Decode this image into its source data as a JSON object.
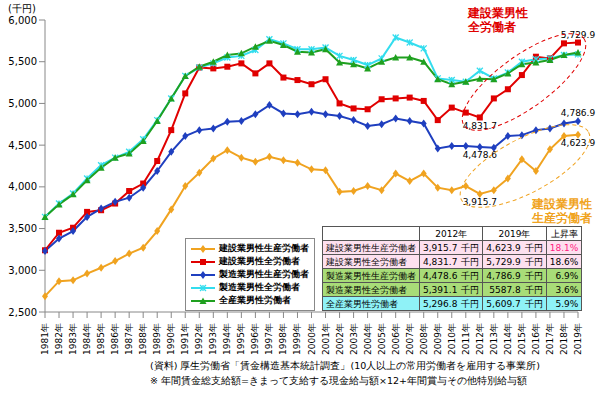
{
  "chart_data": {
    "type": "line",
    "unit_label": "(千円)",
    "categories": [
      "1981年",
      "1982年",
      "1983年",
      "1984年",
      "1985年",
      "1986年",
      "1987年",
      "1988年",
      "1989年",
      "1990年",
      "1991年",
      "1992年",
      "1993年",
      "1994年",
      "1995年",
      "1996年",
      "1997年",
      "1998年",
      "1999年",
      "2000年",
      "2001年",
      "2002年",
      "2003年",
      "2004年",
      "2005年",
      "2006年",
      "2007年",
      "2008年",
      "2009年",
      "2010年",
      "2011年",
      "2012年",
      "2013年",
      "2014年",
      "2015年",
      "2016年",
      "2017年",
      "2018年",
      "2019年"
    ],
    "series": [
      {
        "name": "建設業男性生産労働者",
        "color": "#f0a320",
        "marker": "diamond",
        "values": [
          2690,
          2870,
          2880,
          2960,
          3030,
          3110,
          3200,
          3270,
          3470,
          3730,
          4010,
          4170,
          4340,
          4440,
          4350,
          4300,
          4360,
          4320,
          4290,
          4210,
          4200,
          3940,
          3950,
          4010,
          3960,
          4160,
          4070,
          4160,
          3990,
          3960,
          4010,
          3915.7,
          3960,
          4100,
          4330,
          4190,
          4450,
          4610,
          4623.9
        ]
      },
      {
        "name": "建設業男性全労働者",
        "color": "#e00000",
        "marker": "square",
        "values": [
          3240,
          3450,
          3510,
          3700,
          3720,
          3800,
          3950,
          4040,
          4310,
          4680,
          5120,
          5430,
          5420,
          5440,
          5480,
          5360,
          5480,
          5310,
          5280,
          5230,
          5290,
          5000,
          4940,
          4930,
          5050,
          5060,
          5070,
          5030,
          4800,
          4950,
          4890,
          4831.7,
          5060,
          5170,
          5340,
          5560,
          5540,
          5720,
          5729.9
        ]
      },
      {
        "name": "製造業男性生産労働者",
        "color": "#1f3fbf",
        "marker": "diamond",
        "values": [
          3230,
          3380,
          3470,
          3640,
          3740,
          3820,
          3870,
          3990,
          4190,
          4420,
          4610,
          4680,
          4700,
          4780,
          4790,
          4870,
          4980,
          4880,
          4870,
          4900,
          4870,
          4850,
          4800,
          4730,
          4750,
          4820,
          4790,
          4760,
          4460,
          4490,
          4490,
          4478.6,
          4470,
          4610,
          4620,
          4680,
          4700,
          4760,
          4786.9
        ]
      },
      {
        "name": "製造業男性全労働者",
        "color": "#33ddee",
        "marker": "x",
        "values": [
          3640,
          3800,
          3920,
          4100,
          4260,
          4350,
          4420,
          4570,
          4800,
          5060,
          5330,
          5430,
          5480,
          5550,
          5570,
          5640,
          5770,
          5720,
          5650,
          5650,
          5670,
          5570,
          5520,
          5460,
          5540,
          5790,
          5730,
          5660,
          5300,
          5280,
          5260,
          5391.1,
          5300,
          5370,
          5500,
          5530,
          5540,
          5580,
          5587.8
        ]
      },
      {
        "name": "全産業男性労働者",
        "color": "#1fa01f",
        "marker": "triangle",
        "values": [
          3640,
          3790,
          3910,
          4080,
          4230,
          4350,
          4400,
          4550,
          4790,
          5060,
          5330,
          5440,
          5500,
          5580,
          5600,
          5680,
          5750,
          5700,
          5620,
          5610,
          5650,
          5490,
          5470,
          5420,
          5500,
          5550,
          5550,
          5500,
          5290,
          5230,
          5260,
          5296.8,
          5290,
          5360,
          5470,
          5490,
          5520,
          5580,
          5609.7
        ]
      }
    ],
    "ylim": [
      2500,
      6000
    ],
    "yticks": [
      {
        "value": 2500,
        "label": "2,500"
      },
      {
        "value": 3000,
        "label": "3,000"
      },
      {
        "value": 3500,
        "label": "3,500"
      },
      {
        "value": 4000,
        "label": "4,000"
      },
      {
        "value": 4500,
        "label": "4,500"
      },
      {
        "value": 5000,
        "label": "5,000"
      },
      {
        "value": 5500,
        "label": "5,500"
      },
      {
        "value": 6000,
        "label": "6,000"
      }
    ],
    "grid": false,
    "legend": "lower left",
    "point_labels": [
      {
        "x": "2019年",
        "y": 5729.9,
        "text": "5,729.9"
      },
      {
        "x": "2012年",
        "y": 4831.7,
        "text": "4,831.7"
      },
      {
        "x": "2019年",
        "y": 4786.9,
        "text": "4,786.9"
      },
      {
        "x": "2012年",
        "y": 4478.6,
        "text": "4,478.6"
      },
      {
        "x": "2012年",
        "y": 3915.7,
        "text": "3,915.7"
      },
      {
        "x": "2019年",
        "y": 4623.9,
        "text": "4,623.9"
      }
    ],
    "annotations": [
      {
        "text": "建設業男性全労働者"
      },
      {
        "text": "建設業男性生産労働者"
      }
    ],
    "table": {
      "columns": [
        "2012年",
        "2019年",
        "上昇率"
      ],
      "unit": "千円",
      "rows": [
        {
          "label": "建設業男性生産労働者",
          "values": [
            "3,915.7",
            "4,623.9"
          ],
          "rate": "18.1%"
        },
        {
          "label": "建設業男性全労働者",
          "values": [
            "4,831.7",
            "5,729.9"
          ],
          "rate": "18.6%"
        },
        {
          "label": "製造業男性生産労働者",
          "values": [
            "4,478.6",
            "4,786.9"
          ],
          "rate": "6.9%"
        },
        {
          "label": "製造業男性全労働者",
          "values": [
            "5,391.1",
            "5587.8"
          ],
          "rate": "3.6%"
        },
        {
          "label": "全産業男性労働者",
          "values": [
            "5,296.8",
            "5,609.7"
          ],
          "rate": "5.9%"
        }
      ]
    },
    "notes": [
      "(資料) 厚生労働省「賃金構造基本統計調査」(10人以上の常用労働者を雇用する事業所)",
      "※ 年間賃金総支給額=きまって支給する現金給与額×12+年間賞与その他特別給与額"
    ]
  }
}
